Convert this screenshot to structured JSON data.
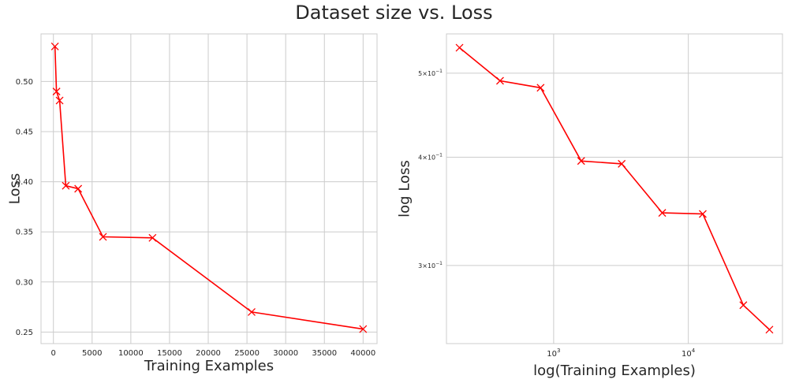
{
  "title": "Dataset size vs. Loss",
  "chart_data": [
    {
      "type": "line",
      "xlabel": "Training Examples",
      "ylabel": "Loss",
      "xscale": "linear",
      "yscale": "linear",
      "xlim": [
        -1600,
        41800
      ],
      "ylim": [
        0.2385,
        0.5475
      ],
      "grid": true,
      "color": "#ff0000",
      "marker": "x",
      "x_ticks": [
        0,
        5000,
        10000,
        15000,
        20000,
        25000,
        30000,
        35000,
        40000
      ],
      "x_tick_labels": [
        "0",
        "5000",
        "10000",
        "15000",
        "20000",
        "25000",
        "30000",
        "35000",
        "40000"
      ],
      "y_ticks": [
        0.25,
        0.3,
        0.35,
        0.4,
        0.45,
        0.5
      ],
      "y_tick_labels": [
        "0.25",
        "0.30",
        "0.35",
        "0.40",
        "0.45",
        "0.50"
      ],
      "x": [
        200,
        400,
        800,
        1600,
        3200,
        6400,
        12800,
        25600,
        40000
      ],
      "y": [
        0.535,
        0.49,
        0.481,
        0.396,
        0.393,
        0.345,
        0.344,
        0.27,
        0.253
      ]
    },
    {
      "type": "line",
      "xlabel": "log(Training Examples)",
      "ylabel": "log Loss",
      "xscale": "log",
      "yscale": "log",
      "xlim": [
        160,
        50000
      ],
      "ylim": [
        0.2438,
        0.555
      ],
      "grid": true,
      "color": "#ff0000",
      "marker": "x",
      "x_ticks": [
        1000,
        10000
      ],
      "x_tick_labels": [
        [
          "10",
          "3"
        ],
        [
          "10",
          "4"
        ]
      ],
      "y_ticks": [
        0.3,
        0.4,
        0.5
      ],
      "y_tick_labels": [
        [
          "3×10",
          "−1"
        ],
        [
          "4×10",
          "−1"
        ],
        [
          "5×10",
          "−1"
        ]
      ],
      "x": [
        200,
        400,
        800,
        1600,
        3200,
        6400,
        12800,
        25600,
        40000
      ],
      "y": [
        0.535,
        0.49,
        0.481,
        0.396,
        0.393,
        0.345,
        0.344,
        0.27,
        0.253
      ]
    }
  ]
}
